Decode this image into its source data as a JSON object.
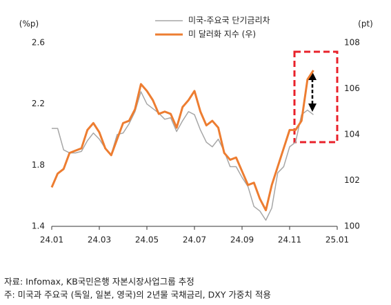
{
  "chart_data": {
    "type": "line",
    "y_label": "(%p)",
    "y2_label": "(pt)",
    "xlim": [
      0,
      12
    ],
    "xticks": [
      {
        "value": 0,
        "label": "24.01"
      },
      {
        "value": 2,
        "label": "24.03"
      },
      {
        "value": 4,
        "label": "24.05"
      },
      {
        "value": 6,
        "label": "24.07"
      },
      {
        "value": 8,
        "label": "24.09"
      },
      {
        "value": 10,
        "label": "24.11"
      },
      {
        "value": 12,
        "label": "25.01"
      }
    ],
    "ylim": [
      1.4,
      2.6
    ],
    "yticks": [
      1.4,
      1.8,
      2.2,
      2.6
    ],
    "y2lim": [
      100,
      108
    ],
    "y2ticks": [
      100,
      102,
      104,
      106,
      108
    ],
    "legend": "top-center",
    "x": [
      0,
      0.25,
      0.5,
      0.75,
      1,
      1.25,
      1.5,
      1.75,
      2,
      2.25,
      2.5,
      2.75,
      3,
      3.25,
      3.5,
      3.75,
      4,
      4.25,
      4.5,
      4.75,
      5,
      5.25,
      5.5,
      5.75,
      6,
      6.25,
      6.5,
      6.75,
      7,
      7.25,
      7.5,
      7.75,
      8,
      8.25,
      8.5,
      8.75,
      9,
      9.25,
      9.5,
      9.75,
      10,
      10.25,
      10.5,
      10.75,
      11
    ],
    "series": [
      {
        "name": "미국-주요국 단기금리차",
        "color": "#a6a6a6",
        "width": 1.5,
        "values": [
          2.04,
          2.04,
          1.9,
          1.88,
          1.88,
          1.89,
          1.96,
          2.01,
          1.97,
          1.91,
          1.87,
          2.0,
          2.01,
          2.07,
          2.15,
          2.28,
          2.2,
          2.17,
          2.14,
          2.1,
          2.11,
          2.02,
          2.09,
          2.15,
          2.13,
          2.03,
          1.95,
          1.92,
          1.97,
          1.89,
          1.79,
          1.79,
          1.72,
          1.66,
          1.53,
          1.5,
          1.44,
          1.52,
          1.75,
          1.79,
          1.92,
          1.95,
          2.13,
          2.16,
          2.13
        ]
      },
      {
        "name": "미 달러화 지수 (우)",
        "color": "#ed7d31",
        "width": 3,
        "axis": "y2",
        "values": [
          101.7,
          102.3,
          102.5,
          103.2,
          103.3,
          103.4,
          104.2,
          104.5,
          104.1,
          103.4,
          103.1,
          103.8,
          104.5,
          104.6,
          105.1,
          106.2,
          105.9,
          105.5,
          104.9,
          105.0,
          104.9,
          104.3,
          105.2,
          105.5,
          105.9,
          105.0,
          104.4,
          104.6,
          104.3,
          103.2,
          102.9,
          103.0,
          102.4,
          101.8,
          101.9,
          101.2,
          100.7,
          101.8,
          102.6,
          103.4,
          104.2,
          104.2,
          104.6,
          106.4,
          106.8
        ]
      }
    ]
  },
  "source": [
    "자료: Infomax, KB국민은행 자본시장사업그룹 추정",
    "주: 미국과 주요국 (독일, 일본, 영국)의 2년물 국채금리, DXY 가중치 적용"
  ]
}
